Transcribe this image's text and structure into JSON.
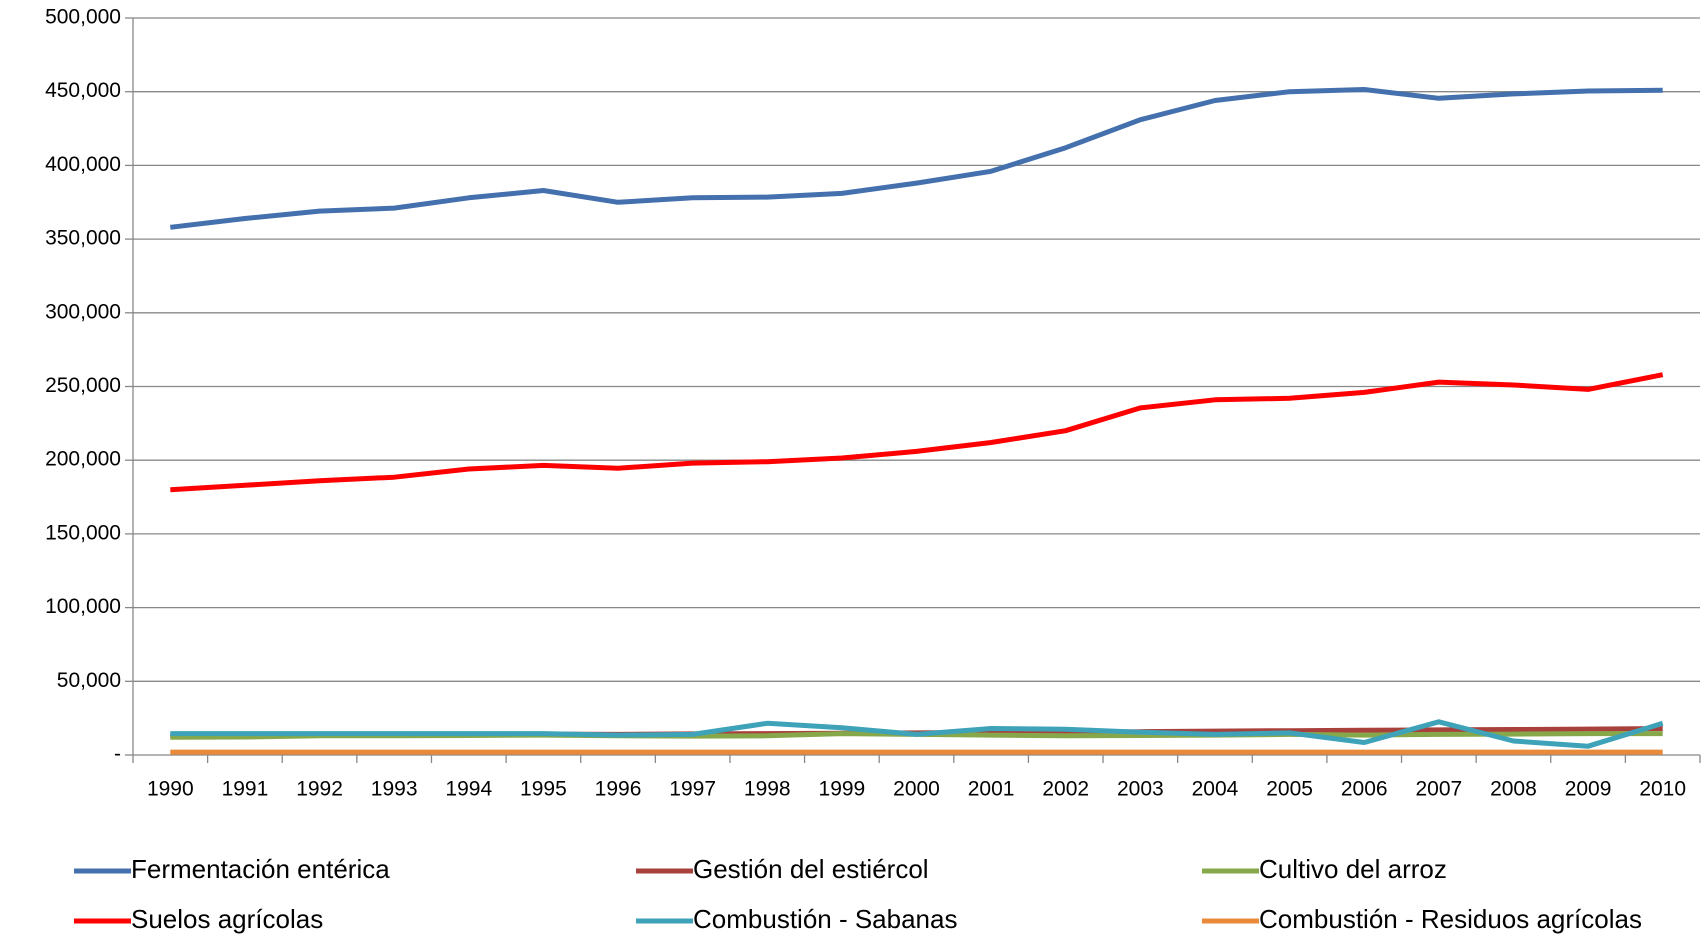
{
  "chart_data": {
    "type": "line",
    "categories": [
      "1990",
      "1991",
      "1992",
      "1993",
      "1994",
      "1995",
      "1996",
      "1997",
      "1998",
      "1999",
      "2000",
      "2001",
      "2002",
      "2003",
      "2004",
      "2005",
      "2006",
      "2007",
      "2008",
      "2009",
      "2010"
    ],
    "series": [
      {
        "name": "Fermentación entérica",
        "color": "#4470ad",
        "values": [
          358000,
          364000,
          369000,
          371000,
          378000,
          383000,
          375000,
          378000,
          378500,
          381000,
          388000,
          396000,
          412000,
          431000,
          444000,
          450000,
          451500,
          445500,
          448500,
          450500,
          451000
        ]
      },
      {
        "name": "Gestión del estiércol",
        "color": "#a8403c",
        "values": [
          13000,
          13200,
          13500,
          13800,
          14000,
          14200,
          14000,
          14300,
          14500,
          14700,
          15000,
          15300,
          15500,
          15800,
          16200,
          16500,
          16800,
          17000,
          17300,
          17600,
          18000
        ]
      },
      {
        "name": "Cultivo del arroz",
        "color": "#87a84a",
        "values": [
          12000,
          12200,
          13000,
          13000,
          13200,
          13500,
          13000,
          12800,
          13000,
          14500,
          14000,
          13500,
          13000,
          13200,
          13500,
          14000,
          13500,
          14000,
          14200,
          14500,
          14500
        ]
      },
      {
        "name": "Suelos agrícolas",
        "color": "#ff0000",
        "values": [
          180000,
          183000,
          186000,
          188500,
          194000,
          196500,
          194500,
          198000,
          199000,
          201500,
          206000,
          212000,
          220000,
          235500,
          241000,
          242000,
          246000,
          253000,
          251000,
          248000,
          258000
        ]
      },
      {
        "name": "Combustión - Sabanas",
        "color": "#3ea2b8",
        "values": [
          14500,
          14500,
          14500,
          14500,
          14500,
          14500,
          13500,
          14000,
          21500,
          18500,
          14000,
          18000,
          17500,
          15500,
          14000,
          15000,
          8500,
          22500,
          9500,
          6000,
          21500
        ]
      },
      {
        "name": "Combustión - Residuos agrícolas",
        "color": "#e88a3a",
        "values": [
          2000,
          2000,
          2000,
          2000,
          2000,
          2000,
          2000,
          2000,
          2000,
          2000,
          2000,
          2000,
          2000,
          2000,
          2000,
          2000,
          2000,
          2000,
          2000,
          2000,
          2000
        ]
      }
    ],
    "ylim": [
      0,
      500000
    ],
    "yticks": [
      {
        "value": 0,
        "label": "-"
      },
      {
        "value": 50000,
        "label": "50,000"
      },
      {
        "value": 100000,
        "label": "100,000"
      },
      {
        "value": 150000,
        "label": "150,000"
      },
      {
        "value": 200000,
        "label": "200,000"
      },
      {
        "value": 250000,
        "label": "250,000"
      },
      {
        "value": 300000,
        "label": "300,000"
      },
      {
        "value": 350000,
        "label": "350,000"
      },
      {
        "value": 400000,
        "label": "400,000"
      },
      {
        "value": 450000,
        "label": "450,000"
      },
      {
        "value": 500000,
        "label": "500,000"
      }
    ],
    "grid": true,
    "legend": "bottom"
  }
}
